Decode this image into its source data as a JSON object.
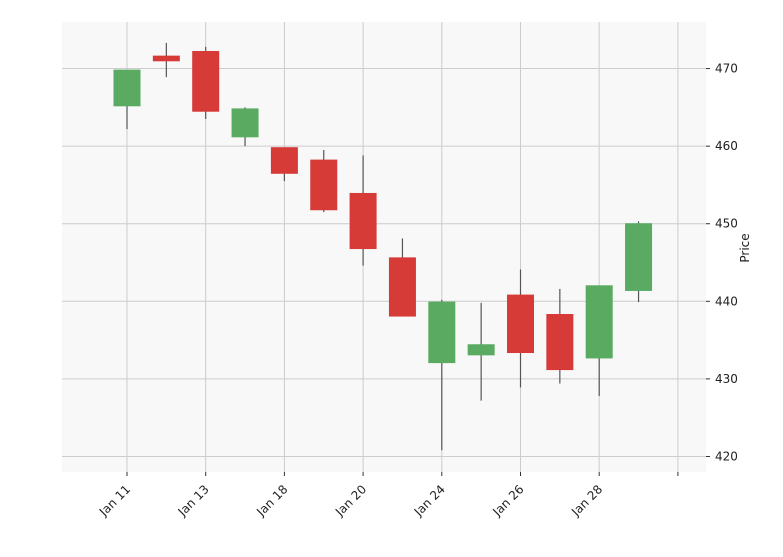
{
  "chart_data": {
    "type": "candlestick",
    "title": "",
    "xlabel": "",
    "ylabel": "Price",
    "ylim": [
      418,
      476
    ],
    "yticks": [
      420,
      430,
      440,
      450,
      460,
      470
    ],
    "xtick_labels": [
      "Jan 11",
      "Jan 13",
      "Jan 18",
      "Jan 20",
      "Jan 24",
      "Jan 26",
      "Jan 28",
      ""
    ],
    "grid": true,
    "colors": {
      "up": "#5aab61",
      "down": "#d63b38",
      "wick": "#555555",
      "plot_bg": "#f8f8f8",
      "grid": "#cccccc"
    },
    "candles": [
      {
        "open": 465.2,
        "high": 469.8,
        "low": 462.2,
        "close": 469.8
      },
      {
        "open": 471.6,
        "high": 473.3,
        "low": 468.9,
        "close": 471.0
      },
      {
        "open": 472.2,
        "high": 472.8,
        "low": 463.5,
        "close": 464.5
      },
      {
        "open": 461.2,
        "high": 465.0,
        "low": 460.0,
        "close": 464.8
      },
      {
        "open": 459.8,
        "high": 459.8,
        "low": 455.5,
        "close": 456.5
      },
      {
        "open": 458.2,
        "high": 459.5,
        "low": 451.5,
        "close": 451.8
      },
      {
        "open": 453.9,
        "high": 458.8,
        "low": 444.6,
        "close": 446.8
      },
      {
        "open": 445.6,
        "high": 448.1,
        "low": 438.1,
        "close": 438.1
      },
      {
        "open": 432.1,
        "high": 440.2,
        "low": 420.8,
        "close": 439.9
      },
      {
        "open": 433.1,
        "high": 439.8,
        "low": 427.2,
        "close": 434.4
      },
      {
        "open": 440.8,
        "high": 444.1,
        "low": 428.9,
        "close": 433.4
      },
      {
        "open": 438.3,
        "high": 441.6,
        "low": 429.4,
        "close": 431.2
      },
      {
        "open": 432.7,
        "high": 442.0,
        "low": 427.8,
        "close": 442.0
      },
      {
        "open": 441.4,
        "high": 450.3,
        "low": 439.9,
        "close": 450.0
      }
    ]
  }
}
